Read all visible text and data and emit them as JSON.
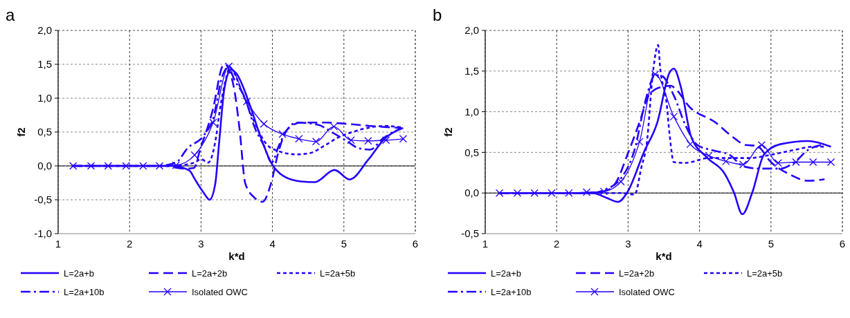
{
  "chart_data": [
    {
      "type": "line",
      "title": "a",
      "xlabel": "k*d",
      "ylabel": "f2",
      "xlim": [
        1,
        6
      ],
      "ylim": [
        -1,
        2
      ],
      "xticks": [
        1,
        2,
        3,
        4,
        5,
        6
      ],
      "yticks": [
        {
          "value": -1,
          "label": "-1,0"
        },
        {
          "value": -0.5,
          "label": "-0,5"
        },
        {
          "value": 0,
          "label": "0,0"
        },
        {
          "value": 0.5,
          "label": "0,5"
        },
        {
          "value": 1,
          "label": "1,0"
        },
        {
          "value": 1.5,
          "label": "1,5"
        },
        {
          "value": 2,
          "label": "2,0"
        }
      ],
      "grid": true,
      "legend": "bottom",
      "series": [
        {
          "name": "L=2a+b",
          "color": "#2200ff",
          "line_style": "solid",
          "marker": "none",
          "x": [
            1.2,
            2.0,
            2.6,
            2.84,
            2.91,
            3.04,
            3.12,
            3.2,
            3.25,
            3.33,
            3.42,
            3.49,
            3.69,
            3.82,
            3.98,
            4.17,
            4.4,
            4.59,
            4.87,
            5.08,
            5.34,
            5.57,
            5.83
          ],
          "values": [
            0,
            0,
            0,
            -0.07,
            -0.19,
            -0.4,
            -0.5,
            -0.26,
            0.3,
            1.16,
            1.42,
            1.37,
            0.88,
            0.47,
            0.05,
            -0.16,
            -0.23,
            -0.24,
            -0.06,
            -0.2,
            0.09,
            0.4,
            0.56
          ]
        },
        {
          "name": "L=2a+2b",
          "color": "#2200ff",
          "line_style": "dashed",
          "marker": "none",
          "x": [
            1.2,
            2.0,
            2.5,
            2.75,
            2.9,
            2.99,
            3.17,
            3.3,
            3.33,
            3.46,
            3.54,
            3.62,
            3.75,
            3.86,
            3.98,
            4.08,
            4.21,
            4.4,
            4.73,
            5.05,
            5.37,
            5.81
          ],
          "values": [
            0,
            0,
            0,
            -0.04,
            -0.03,
            0.25,
            0.85,
            1.47,
            1.5,
            1.16,
            0.54,
            -0.26,
            -0.47,
            -0.53,
            -0.26,
            0.19,
            0.54,
            0.64,
            0.64,
            0.62,
            0.59,
            0.56
          ]
        },
        {
          "name": "L=2a+5b",
          "color": "#2200ff",
          "line_style": "dotted",
          "marker": "none",
          "x": [
            1.2,
            2.0,
            2.6,
            2.91,
            3.0,
            3.1,
            3.2,
            3.26,
            3.36,
            3.4,
            3.59,
            3.75,
            3.91,
            4.08,
            4.34,
            4.53,
            4.73,
            4.92,
            5.12,
            5.38,
            5.57,
            5.8
          ],
          "values": [
            0,
            0,
            0,
            0.05,
            0.1,
            0.05,
            0.36,
            0.8,
            1.33,
            1.45,
            1.05,
            0.64,
            0.33,
            0.22,
            0.17,
            0.19,
            0.3,
            0.42,
            0.5,
            0.57,
            0.59,
            0.57
          ]
        },
        {
          "name": "L=2a+10b",
          "color": "#2200ff",
          "line_style": "dashdot",
          "marker": "none",
          "x": [
            1.2,
            2.0,
            2.4,
            2.65,
            2.81,
            3.04,
            3.17,
            3.3,
            3.4,
            3.43,
            3.62,
            3.75,
            3.88,
            3.99,
            4.09,
            4.21,
            4.34,
            4.63,
            4.86,
            5.05,
            5.21,
            5.37,
            5.54,
            5.81
          ],
          "values": [
            0,
            0,
            0,
            0.05,
            0.26,
            0.45,
            0.7,
            1.33,
            1.47,
            1.37,
            0.99,
            0.57,
            0.3,
            0.05,
            0.3,
            0.54,
            0.64,
            0.61,
            0.48,
            0.36,
            0.26,
            0.24,
            0.4,
            0.56
          ]
        },
        {
          "name": "Isolated OWC",
          "color": "#2200ff",
          "line_style": "solid",
          "marker": "cross",
          "x": [
            1.21,
            1.46,
            1.7,
            1.95,
            2.19,
            2.42,
            2.65,
            2.91,
            3.17,
            3.39,
            3.64,
            3.88,
            4.14,
            4.37,
            4.61,
            4.86,
            5.1,
            5.34,
            5.59,
            5.83
          ],
          "values": [
            0,
            0,
            0,
            0,
            0,
            0,
            0.01,
            0.16,
            0.64,
            1.47,
            0.95,
            0.62,
            0.47,
            0.4,
            0.36,
            0.58,
            0.38,
            0.37,
            0.38,
            0.4
          ]
        }
      ]
    },
    {
      "type": "line",
      "title": "b",
      "xlabel": "k*d",
      "ylabel": "f2",
      "xlim": [
        1,
        6
      ],
      "ylim": [
        -0.5,
        2
      ],
      "xticks": [
        1,
        2,
        3,
        4,
        5,
        6
      ],
      "yticks": [
        {
          "value": -0.5,
          "label": "-0,5"
        },
        {
          "value": 0,
          "label": "0,0"
        },
        {
          "value": 0.5,
          "label": "0,5"
        },
        {
          "value": 1,
          "label": "1,0"
        },
        {
          "value": 1.5,
          "label": "1,5"
        },
        {
          "value": 2,
          "label": "2,0"
        }
      ],
      "grid": true,
      "legend": "bottom",
      "series": [
        {
          "name": "L=2a+b",
          "color": "#2200ff",
          "line_style": "solid",
          "marker": "none",
          "x": [
            1.2,
            2.0,
            2.5,
            2.7,
            2.86,
            2.99,
            3.22,
            3.41,
            3.58,
            3.64,
            3.74,
            3.88,
            4.1,
            4.35,
            4.48,
            4.6,
            4.74,
            4.9,
            5.13,
            5.52,
            5.84
          ],
          "values": [
            0,
            0,
            0,
            -0.06,
            -0.11,
            0.01,
            0.5,
            0.87,
            1.48,
            1.53,
            1.3,
            0.7,
            0.44,
            0.24,
            0.01,
            -0.26,
            0.01,
            0.47,
            0.6,
            0.64,
            0.57
          ]
        },
        {
          "name": "L=2a+2b",
          "color": "#2200ff",
          "line_style": "dashed",
          "marker": "none",
          "x": [
            1.2,
            2.0,
            2.5,
            2.7,
            2.83,
            2.99,
            3.16,
            3.29,
            3.45,
            3.6,
            3.64,
            3.87,
            4.22,
            4.45,
            4.65,
            4.8,
            5.0,
            5.26,
            5.52,
            5.75
          ],
          "values": [
            0,
            0,
            0,
            0.03,
            0.13,
            0.47,
            0.87,
            1.2,
            1.3,
            1.32,
            1.3,
            1.05,
            0.87,
            0.7,
            0.59,
            0.58,
            0.38,
            0.23,
            0.15,
            0.17
          ]
        },
        {
          "name": "L=2a+5b",
          "color": "#2200ff",
          "line_style": "dotted",
          "marker": "none",
          "x": [
            1.2,
            2.0,
            2.6,
            2.9,
            3.09,
            3.19,
            3.26,
            3.35,
            3.42,
            3.45,
            3.54,
            3.58,
            3.64,
            3.8,
            4.13,
            4.45,
            4.7,
            5.0,
            5.33,
            5.59,
            5.78
          ],
          "values": [
            0,
            0,
            0,
            0,
            -0.02,
            0.33,
            0.6,
            1.5,
            1.82,
            1.53,
            1.1,
            0.73,
            0.38,
            0.37,
            0.43,
            0.43,
            0.43,
            0.47,
            0.53,
            0.57,
            0.57
          ]
        },
        {
          "name": "L=2a+10b",
          "color": "#2200ff",
          "line_style": "dashdot",
          "marker": "none",
          "x": [
            1.2,
            2.0,
            2.5,
            2.67,
            2.9,
            3.09,
            3.25,
            3.38,
            3.45,
            3.64,
            3.8,
            3.97,
            4.16,
            4.42,
            4.61,
            4.84,
            5.13,
            5.33,
            5.52,
            5.75
          ],
          "values": [
            0,
            0,
            0,
            0.04,
            0.18,
            0.53,
            1.16,
            1.45,
            1.45,
            1.2,
            0.84,
            0.59,
            0.53,
            0.47,
            0.33,
            0.3,
            0.3,
            0.38,
            0.53,
            0.6
          ]
        },
        {
          "name": "Isolated OWC",
          "color": "#2200ff",
          "line_style": "solid",
          "marker": "cross",
          "x": [
            1.2,
            1.45,
            1.69,
            1.93,
            2.17,
            2.42,
            2.66,
            2.9,
            3.16,
            3.38,
            3.64,
            3.87,
            4.13,
            4.37,
            4.61,
            4.87,
            5.1,
            5.35,
            5.59,
            5.84
          ],
          "values": [
            0,
            0,
            0,
            0,
            0,
            0.01,
            0.02,
            0.14,
            0.63,
            1.46,
            0.94,
            0.6,
            0.46,
            0.39,
            0.35,
            0.59,
            0.37,
            0.38,
            0.38,
            0.38
          ]
        }
      ]
    }
  ]
}
